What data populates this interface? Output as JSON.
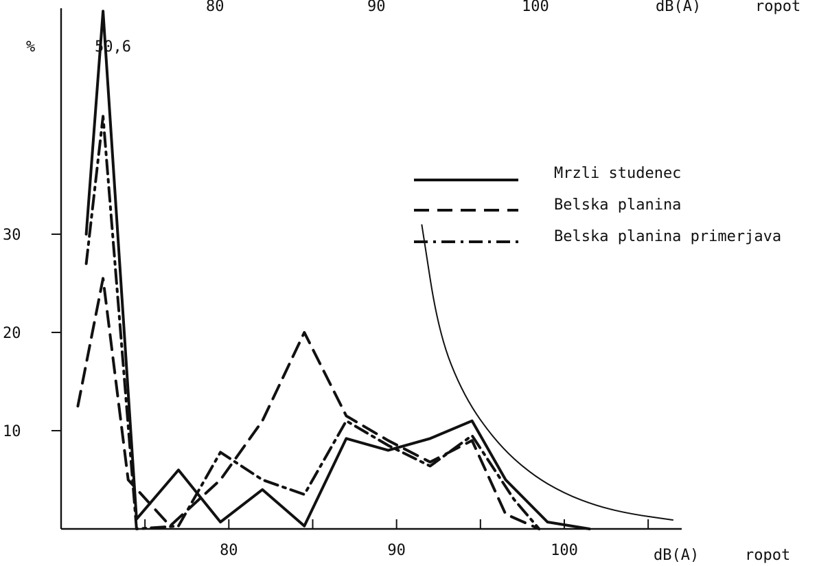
{
  "chart_data": {
    "type": "line",
    "xlabel": "dB(A)",
    "xlabel_extra": "ropot",
    "ylabel": "%",
    "xlim": [
      70,
      107
    ],
    "ylim": [
      0,
      53
    ],
    "x_ticks": [
      75,
      80,
      85,
      90,
      95,
      100,
      105
    ],
    "x_tick_labels": [
      "80",
      "90",
      "100"
    ],
    "x_tick_label_values": [
      80,
      90,
      100
    ],
    "y_ticks": [
      10,
      20,
      30
    ],
    "y_tick_labels": [
      "10",
      "20",
      "30"
    ],
    "annotation": "50,6",
    "top_axis_text": [
      "80",
      "90",
      "100",
      "dB(A)",
      "ropot"
    ],
    "series": [
      {
        "name": "Mrzli studenec",
        "style": "solid",
        "x": [
          71.5,
          72.5,
          74.5,
          77,
          79.5,
          82,
          84.5,
          87,
          89.5,
          92,
          94.5,
          96.5,
          99,
          101.5
        ],
        "y": [
          30,
          52.7,
          1,
          6,
          0.7,
          4,
          0.3,
          9.2,
          8,
          9.2,
          11,
          5,
          0.7,
          0
        ]
      },
      {
        "name": "Belska planina",
        "style": "dashed",
        "x": [
          71,
          72.5,
          74,
          76.5,
          79.5,
          82,
          84.5,
          87,
          89.5,
          92,
          94.5,
          96.5,
          98.5
        ],
        "y": [
          12.5,
          25.5,
          5,
          0.3,
          5,
          11,
          20,
          11.5,
          9,
          6.8,
          9,
          1.5,
          0
        ]
      },
      {
        "name": "Belska planina primerjava",
        "style": "dashdot",
        "x": [
          71.5,
          72.5,
          74.5,
          77,
          79.5,
          82,
          84.5,
          87,
          89.5,
          92,
          94.5,
          97,
          98.5
        ],
        "y": [
          27,
          42,
          0,
          0.3,
          7.8,
          5,
          3.5,
          11,
          8.5,
          6.4,
          9.5,
          3,
          0
        ]
      }
    ],
    "reference_curve": {
      "x": [
        91.5,
        92.5,
        94,
        96,
        98,
        100,
        102,
        104,
        106.5
      ],
      "y": [
        31,
        20,
        13.5,
        8.7,
        5.6,
        3.6,
        2.3,
        1.5,
        0.9
      ]
    },
    "legend": {
      "placement": "top-right",
      "items": [
        "Mrzli studenec",
        "Belska planina",
        "Belska planina primerjava"
      ]
    },
    "colors": {
      "ink": "#111111",
      "background": "#ffffff"
    }
  }
}
